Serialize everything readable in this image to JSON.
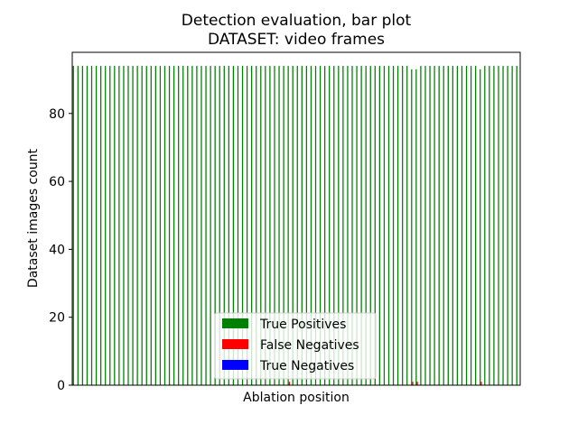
{
  "chart_data": {
    "type": "bar",
    "title": "Detection evaluation, bar plot",
    "subtitle": "DATASET: video frames",
    "xlabel": "Ablation position",
    "ylabel": "Dataset images count",
    "ylim": [
      0,
      98
    ],
    "yticks": [
      0,
      20,
      40,
      60,
      80
    ],
    "grid": false,
    "legend_position": "lower center",
    "series": [
      {
        "name": "True Positives",
        "color": "#008000",
        "values": [
          94,
          94,
          94,
          94,
          94,
          94,
          94,
          94,
          94,
          94,
          94,
          94,
          94,
          94,
          94,
          94,
          94,
          94,
          94,
          94,
          94,
          94,
          94,
          94,
          94,
          94,
          94,
          94,
          94,
          94,
          94,
          94,
          94,
          94,
          94,
          94,
          94,
          94,
          94,
          94,
          94,
          94,
          94,
          94,
          94,
          94,
          94,
          94,
          94,
          94,
          94,
          94,
          94,
          94,
          94,
          94,
          94,
          94,
          94,
          94,
          94,
          94,
          94,
          94,
          94,
          94,
          94,
          94,
          94,
          94,
          94,
          94,
          94,
          94,
          93,
          93,
          94,
          94,
          94,
          94,
          94,
          94,
          94,
          94,
          94,
          94,
          94,
          94,
          94,
          93,
          94,
          94,
          94,
          94,
          94,
          94,
          94,
          94
        ]
      },
      {
        "name": "False Negatives",
        "color": "#ff0000",
        "values": [
          0,
          0,
          0,
          0,
          0,
          0,
          0,
          0,
          0,
          0,
          0,
          0,
          0,
          0,
          0,
          0,
          0,
          0,
          0,
          0,
          0,
          0,
          0,
          0,
          0,
          0,
          0,
          0,
          0,
          0,
          0,
          0,
          0,
          0,
          0,
          0,
          0,
          0,
          0,
          0,
          0,
          0,
          0,
          0,
          0,
          0,
          0,
          1,
          0,
          0,
          0,
          0,
          0,
          0,
          0,
          0,
          0,
          0,
          0,
          0,
          0,
          0,
          0,
          0,
          0,
          0,
          0,
          0,
          0,
          0,
          0,
          0,
          0,
          0,
          1,
          1,
          0,
          0,
          0,
          0,
          0,
          0,
          0,
          0,
          0,
          0,
          0,
          0,
          0,
          1,
          0,
          0,
          0,
          0,
          0,
          0,
          0,
          0
        ]
      },
      {
        "name": "True Negatives",
        "color": "#0000ff",
        "values": [
          0,
          0,
          0,
          0,
          0,
          0,
          0,
          0,
          0,
          0,
          0,
          0,
          0,
          0,
          0,
          0,
          0,
          0,
          0,
          0,
          0,
          0,
          0,
          0,
          0,
          0,
          0,
          0,
          0,
          0,
          0,
          0,
          0,
          0,
          0,
          0,
          0,
          0,
          0,
          0,
          0,
          0,
          0,
          0,
          0,
          0,
          0,
          0,
          0,
          0,
          0,
          0,
          0,
          0,
          0,
          0,
          0,
          0,
          0,
          0,
          0,
          0,
          0,
          0,
          0,
          0,
          0,
          0,
          0,
          0,
          0,
          0,
          0,
          0,
          0,
          0,
          0,
          0,
          0,
          0,
          0,
          0,
          0,
          0,
          0,
          0,
          0,
          0,
          0,
          0,
          0,
          0,
          0,
          0,
          0,
          0,
          0,
          0
        ]
      }
    ]
  }
}
